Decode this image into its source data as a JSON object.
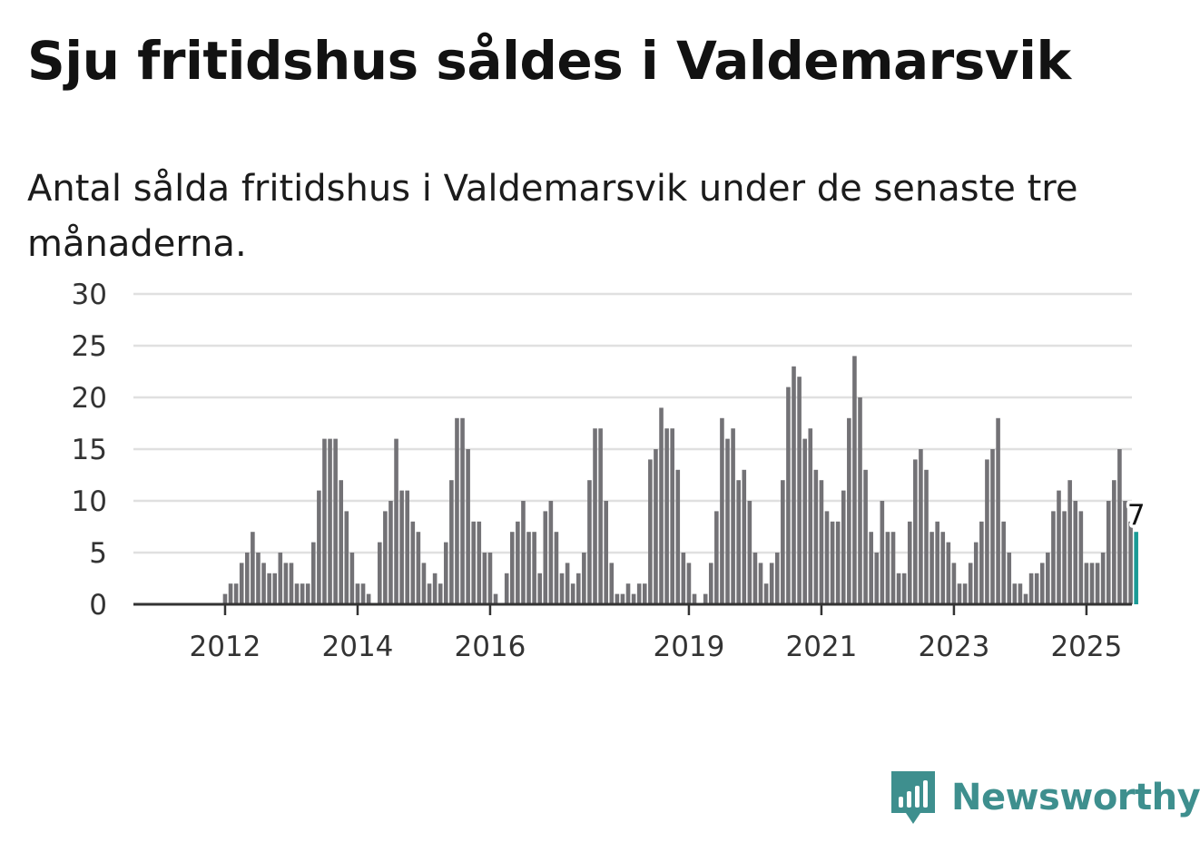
{
  "title": "Sju fritidshus såldes i Valdemarsvik",
  "subtitle": "Antal sålda fritidshus i Valdemarsvik under de senaste tre månaderna.",
  "brand": {
    "name": "Newsworthy",
    "icon": "newsworthy-logo-icon",
    "color": "#3e8f8e"
  },
  "colors": {
    "bar": "#737276",
    "highlight": "#1a9a96",
    "grid": "#e0e0e0",
    "axis": "#333333"
  },
  "chart_data": {
    "type": "bar",
    "title": "Sju fritidshus såldes i Valdemarsvik",
    "subtitle": "Antal sålda fritidshus i Valdemarsvik under de senaste tre månaderna.",
    "xlabel": "",
    "ylabel": "",
    "ylim": [
      0,
      30
    ],
    "yticks": [
      0,
      5,
      10,
      15,
      20,
      25,
      30
    ],
    "xticks": [
      "2012",
      "2014",
      "2016",
      "2019",
      "2021",
      "2023",
      "2025"
    ],
    "grid": true,
    "start": "2011-05",
    "frequency": "monthly",
    "values": [
      0,
      0,
      0,
      0,
      0,
      0,
      0,
      0,
      1,
      2,
      2,
      4,
      5,
      7,
      5,
      4,
      3,
      3,
      5,
      4,
      4,
      2,
      2,
      2,
      6,
      11,
      16,
      16,
      16,
      12,
      9,
      5,
      2,
      2,
      1,
      0,
      6,
      9,
      10,
      16,
      11,
      11,
      8,
      7,
      4,
      2,
      3,
      2,
      6,
      12,
      18,
      18,
      15,
      8,
      8,
      5,
      5,
      1,
      0,
      3,
      7,
      8,
      10,
      7,
      7,
      3,
      9,
      10,
      7,
      3,
      4,
      2,
      3,
      5,
      12,
      17,
      17,
      10,
      4,
      1,
      1,
      2,
      1,
      2,
      2,
      14,
      15,
      19,
      17,
      17,
      13,
      5,
      4,
      1,
      0,
      1,
      4,
      9,
      18,
      16,
      17,
      12,
      13,
      10,
      5,
      4,
      2,
      4,
      5,
      12,
      21,
      23,
      22,
      16,
      17,
      13,
      12,
      9,
      8,
      8,
      11,
      18,
      24,
      20,
      13,
      7,
      5,
      10,
      7,
      7,
      3,
      3,
      8,
      14,
      15,
      13,
      7,
      8,
      7,
      6,
      4,
      2,
      2,
      4,
      6,
      8,
      14,
      15,
      18,
      8,
      5,
      2,
      2,
      1,
      3,
      3,
      4,
      5,
      9,
      11,
      9,
      12,
      10,
      9,
      4,
      4,
      4,
      5,
      10,
      12,
      15,
      10,
      8,
      7
    ],
    "highlight_last": true,
    "annotation": {
      "label": "7",
      "value": 7
    }
  }
}
